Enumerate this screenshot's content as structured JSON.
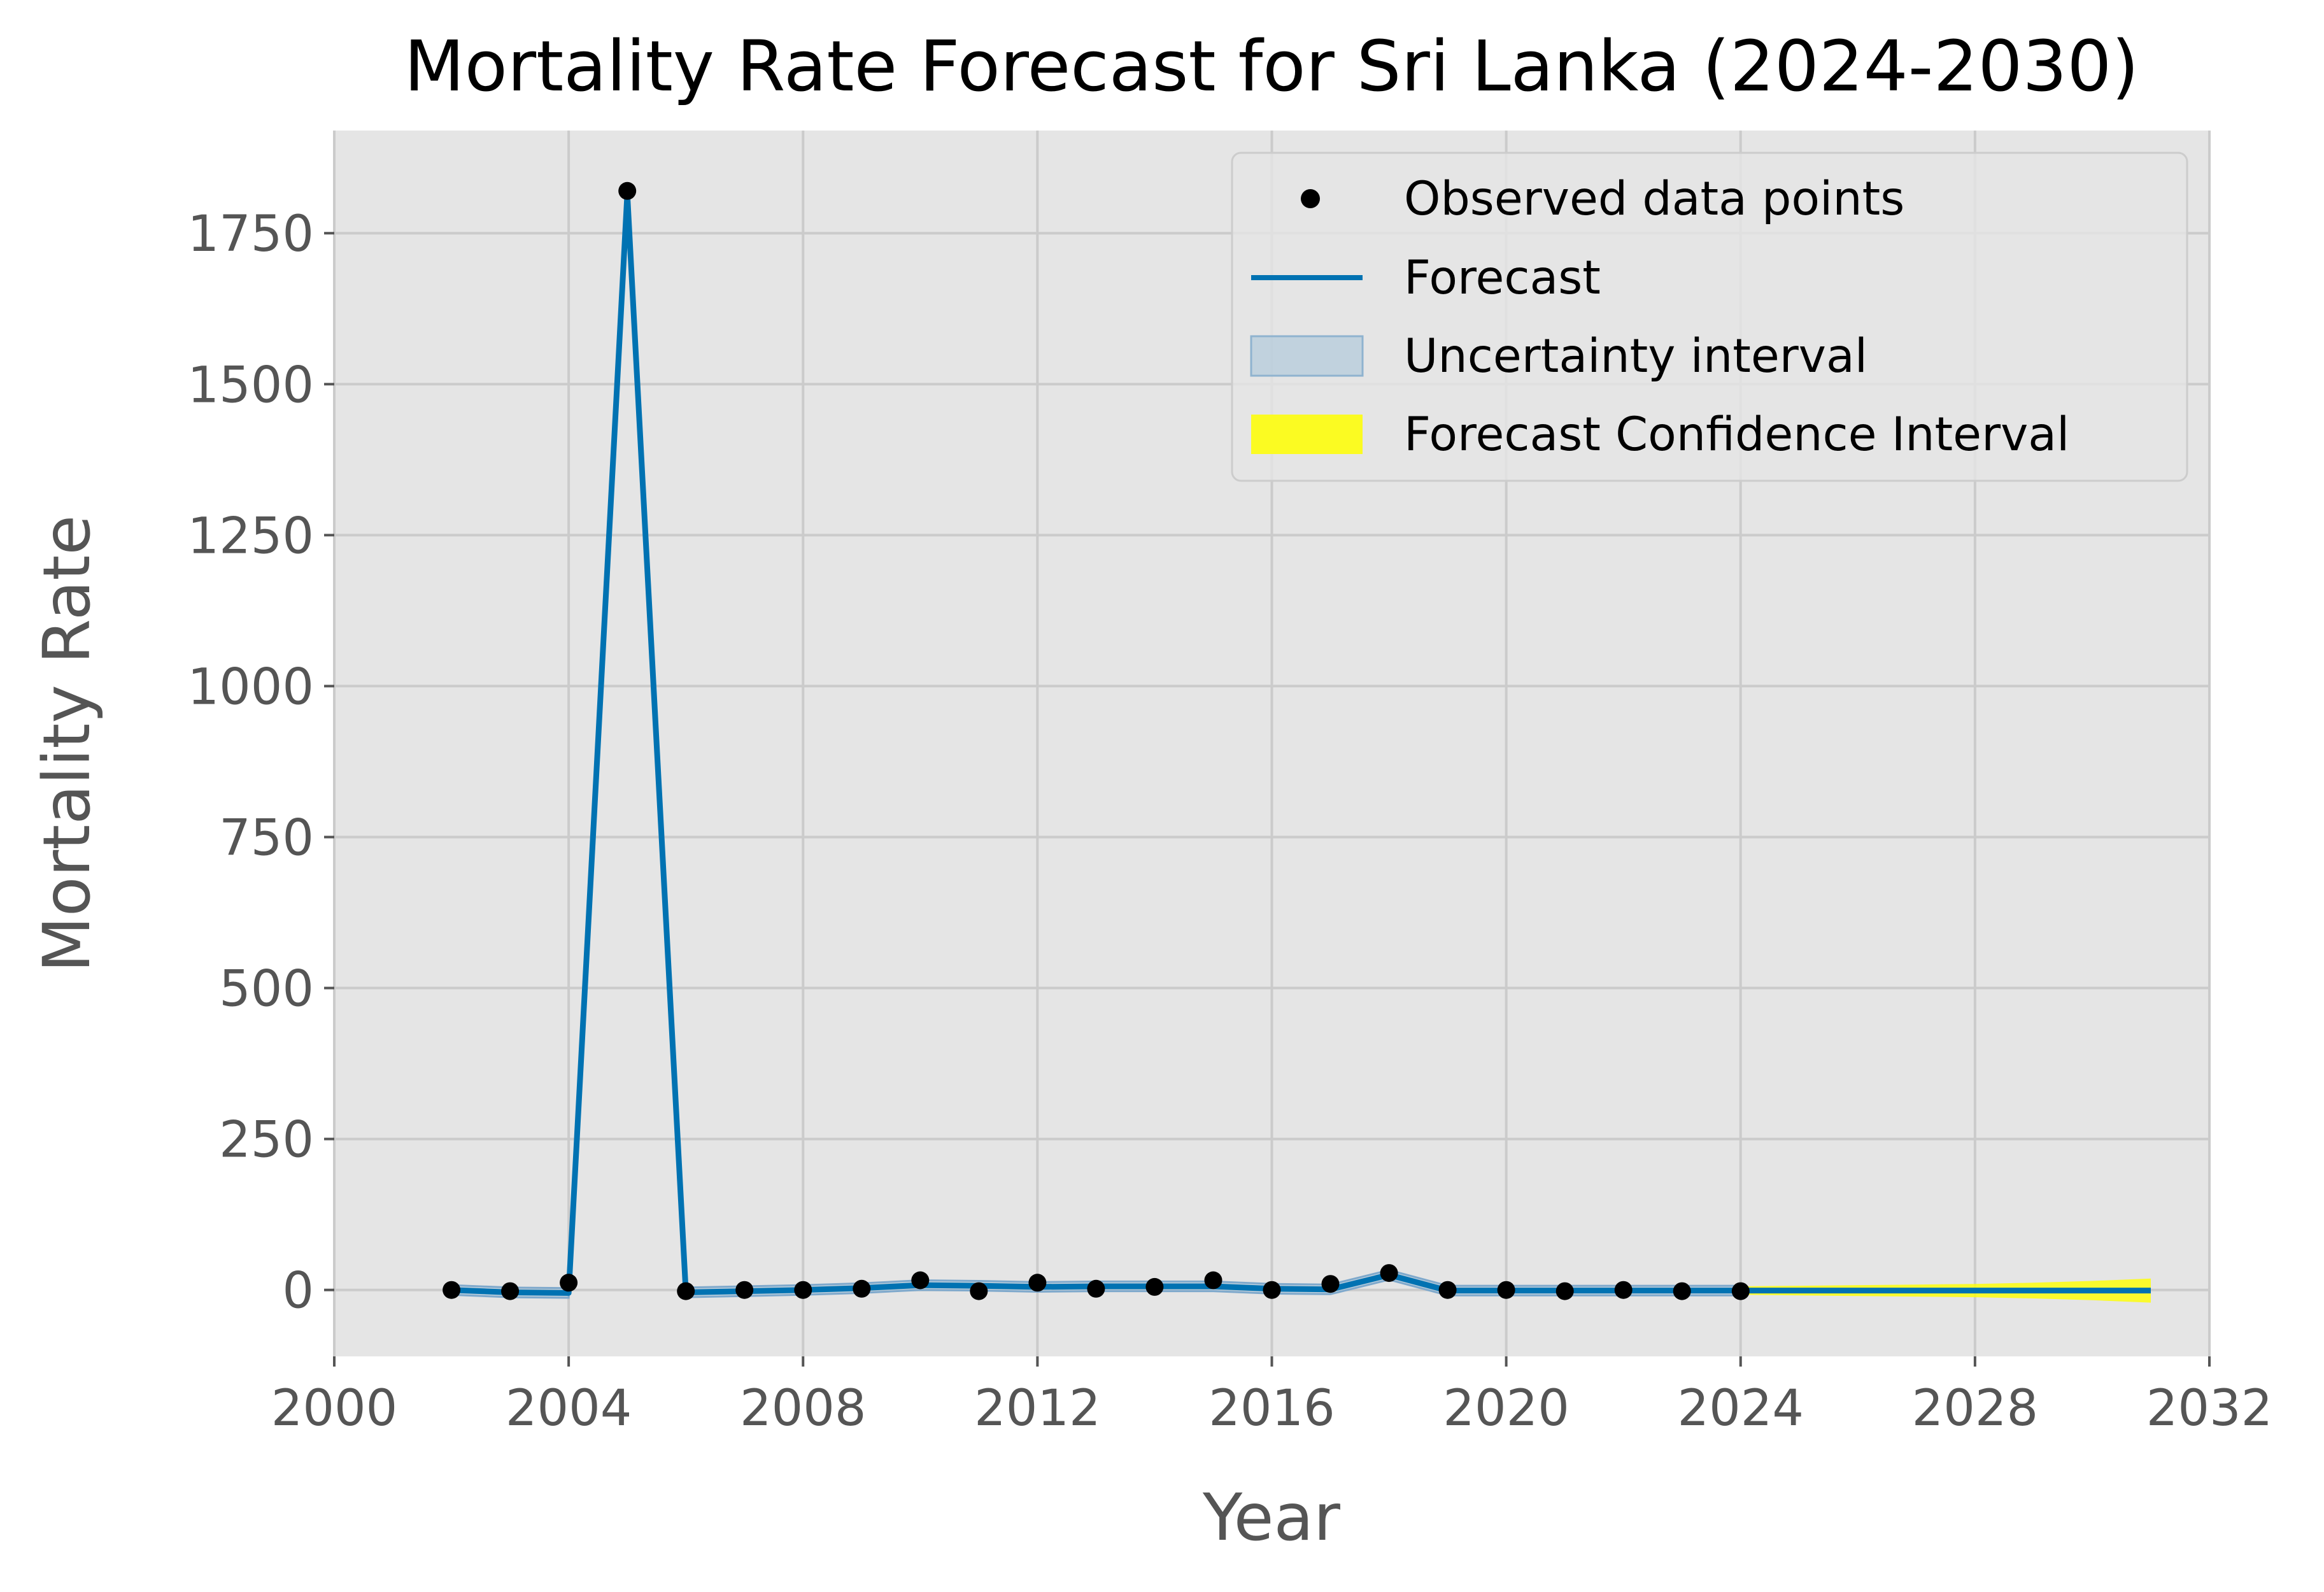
{
  "chart_data": {
    "type": "line",
    "title": "Mortality Rate Forecast for Sri Lanka (2024-2030)",
    "xlabel": "Year",
    "ylabel": "Mortality Rate",
    "xlim": [
      2000,
      2032
    ],
    "ylim": [
      -110,
      1920
    ],
    "xticks": [
      "2000",
      "2004",
      "2008",
      "2012",
      "2016",
      "2020",
      "2024",
      "2028",
      "2032"
    ],
    "xtick_values": [
      2000,
      2004,
      2008,
      2012,
      2016,
      2020,
      2024,
      2028,
      2032
    ],
    "yticks": [
      "0",
      "250",
      "500",
      "750",
      "1000",
      "1250",
      "1500",
      "1750"
    ],
    "ytick_values": [
      0,
      250,
      500,
      750,
      1000,
      1250,
      1500,
      1750
    ],
    "grid": true,
    "legend_position": "top-right",
    "observed": {
      "name": "Observed data points",
      "x": [
        2002,
        2003,
        2004,
        2005,
        2006,
        2007,
        2008,
        2009,
        2010,
        2011,
        2012,
        2013,
        2014,
        2015,
        2016,
        2017,
        2018,
        2019,
        2020,
        2021,
        2022,
        2023,
        2024
      ],
      "y": [
        0,
        -2,
        12,
        1820,
        -2,
        0,
        0,
        2,
        16,
        -2,
        12,
        2,
        5,
        16,
        0,
        10,
        28,
        0,
        0,
        -2,
        0,
        -2,
        -2
      ]
    },
    "forecast": {
      "name": "Forecast",
      "x": [
        2002,
        2003,
        2004,
        2005,
        2006,
        2007,
        2008,
        2009,
        2010,
        2011,
        2012,
        2013,
        2014,
        2015,
        2016,
        2017,
        2018,
        2019,
        2020,
        2021,
        2022,
        2023,
        2024,
        2025,
        2026,
        2027,
        2028,
        2029,
        2030,
        2031
      ],
      "y": [
        0,
        -4,
        -5,
        1815,
        -4,
        -2,
        0,
        3,
        8,
        7,
        5,
        6,
        6,
        6,
        2,
        1,
        25,
        -1,
        -1,
        -1,
        -1,
        -1,
        -1,
        -1,
        -1,
        -1,
        -1,
        -1,
        -1,
        -1
      ]
    },
    "uncertainty": {
      "name": "Uncertainty interval",
      "x": [
        2002,
        2003,
        2004,
        2005,
        2006,
        2007,
        2008,
        2009,
        2010,
        2011,
        2012,
        2013,
        2014,
        2015,
        2016,
        2017,
        2018,
        2019,
        2020,
        2021,
        2022,
        2023,
        2024
      ],
      "lower": [
        -8,
        -12,
        -13,
        1807,
        -12,
        -10,
        -8,
        -5,
        0,
        -1,
        -3,
        -2,
        -2,
        -2,
        -6,
        -7,
        17,
        -9,
        -9,
        -9,
        -9,
        -9,
        -9
      ],
      "upper": [
        8,
        4,
        3,
        1823,
        4,
        6,
        8,
        11,
        16,
        15,
        13,
        14,
        14,
        14,
        10,
        9,
        33,
        7,
        7,
        7,
        7,
        7,
        7
      ]
    },
    "confidence": {
      "name": "Forecast Confidence Interval",
      "x": [
        2024,
        2025,
        2026,
        2027,
        2028,
        2029,
        2030,
        2031
      ],
      "lower": [
        -8,
        -9,
        -10,
        -11,
        -12,
        -14,
        -17,
        -21
      ],
      "upper": [
        6,
        7,
        8,
        9,
        10,
        12,
        15,
        19
      ]
    },
    "colors": {
      "forecast_line": "#0072B2",
      "observed_point": "#000000",
      "uncertainty_fill": "#a9c4d9",
      "confidence_fill": "#ffff00",
      "plot_background": "#e5e5e5",
      "grid": "#cbcbcb"
    }
  }
}
